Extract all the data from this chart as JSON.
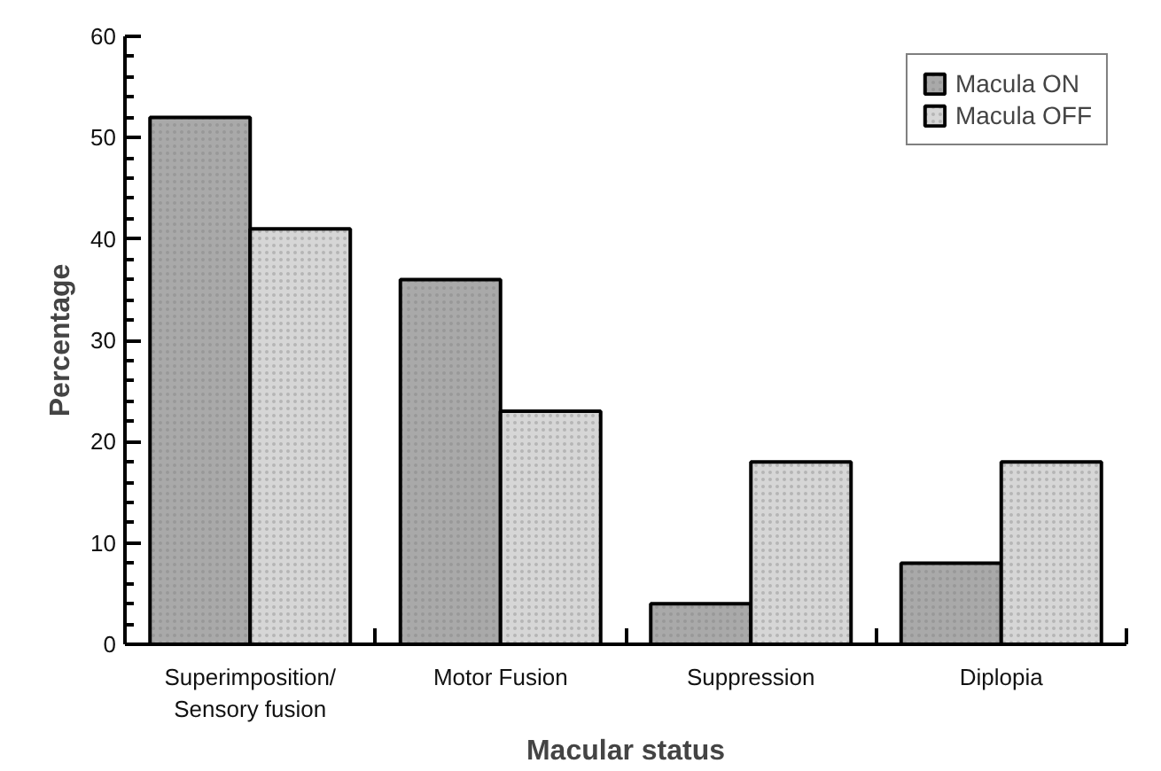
{
  "chart_data": {
    "type": "bar",
    "xlabel": "Macular status",
    "ylabel": "Percentage",
    "categories": [
      "Superimposition/\nSensory fusion",
      "Motor Fusion",
      "Suppression",
      "Diplopia"
    ],
    "series": [
      {
        "name": "Macula ON",
        "color": "#a9a9a9",
        "values": [
          52,
          36,
          4,
          8
        ]
      },
      {
        "name": "Macula OFF",
        "color": "#d6d6d6",
        "values": [
          41,
          23,
          18,
          18
        ]
      }
    ],
    "ylim": [
      0,
      60
    ],
    "yticks": [
      0,
      10,
      20,
      30,
      40,
      50,
      60
    ],
    "grid": false,
    "legend": "top right"
  }
}
